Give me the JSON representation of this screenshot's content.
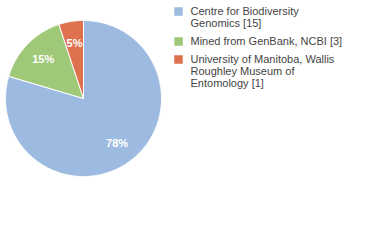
{
  "chart_data": {
    "type": "pie",
    "categories": [
      "Centre for Biodiversity Genomics [15]",
      "Mined from GenBank, NCBI [3]",
      "University of Manitoba, Wallis Roughley Museum of Entomology [1]"
    ],
    "values": [
      78,
      15,
      5
    ],
    "value_labels": [
      "78%",
      "15%",
      "5%"
    ],
    "colors": [
      "#9dbbe0",
      "#9fc878",
      "#e0714f"
    ],
    "data_labels": true,
    "legend": "top-right"
  }
}
